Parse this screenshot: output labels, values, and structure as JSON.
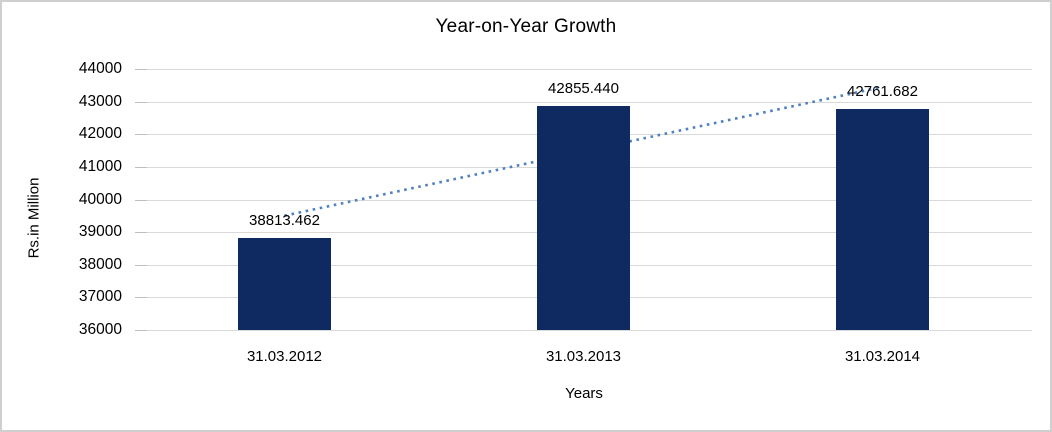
{
  "frame": {
    "background": "#ffffff",
    "border_color": "#cfcfcf"
  },
  "chart_data": {
    "type": "bar",
    "title": "Year-on-Year Growth",
    "categories": [
      "31.03.2012",
      "31.03.2013",
      "31.03.2014"
    ],
    "values": [
      38813.462,
      42855.44,
      42761.682
    ],
    "data_labels": [
      "38813.462",
      "42855.440",
      "42761.682"
    ],
    "xlabel": "Years",
    "ylabel": "Rs.in Million",
    "ylim": [
      36000,
      44000
    ],
    "ytick_step": 1000,
    "ytick_labels": [
      "36000",
      "37000",
      "38000",
      "39000",
      "40000",
      "41000",
      "42000",
      "43000",
      "44000"
    ],
    "grid": true,
    "legend": "none",
    "bar_color": "#0e2a60",
    "gridline_color": "#d9d9d9",
    "tick_color": "#bfbfbf",
    "text_color": "#000000",
    "trendline": {
      "type": "linear",
      "style": "dotted",
      "color": "#4f81bd"
    }
  }
}
